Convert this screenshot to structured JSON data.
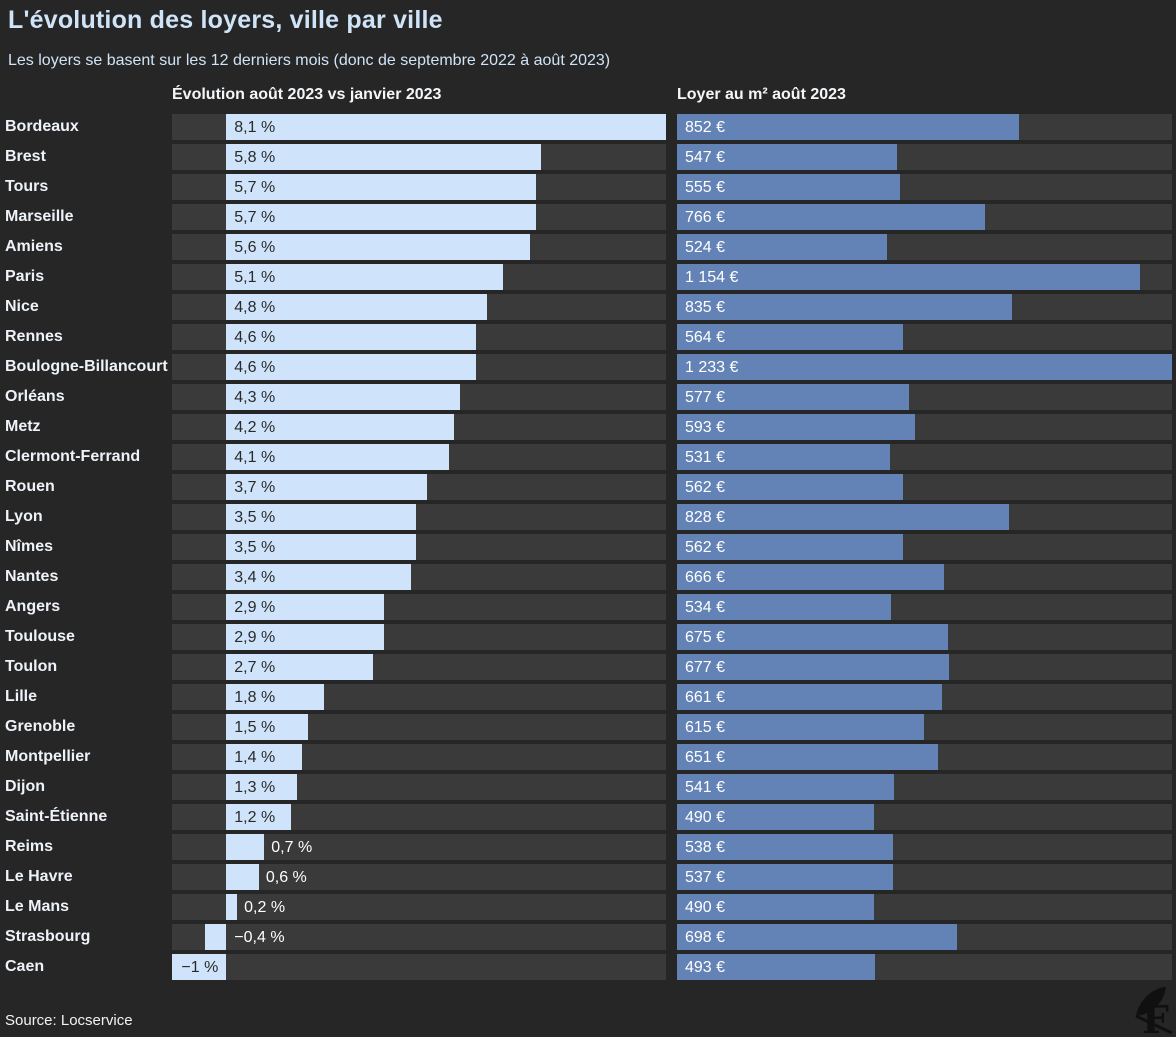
{
  "header": {
    "title": "L'évolution des loyers, ville par ville",
    "subtitle": "Les loyers se basent sur les 12 derniers mois (donc de septembre 2022 à août 2023)"
  },
  "columns": {
    "left_header": "Évolution août 2023 vs janvier 2023",
    "right_header": "Loyer au m² août 2023"
  },
  "footer": {
    "source": "Source: Locservice",
    "logo_icon": "quill-f-logo"
  },
  "colors": {
    "background": "#262626",
    "track": "#3a3a3a",
    "evolution_bar": "#cfe4fa",
    "rent_bar": "#6383b6",
    "heading_text": "#cfe4f8",
    "city_text": "#eef3f9",
    "value_dark_text": "#2a2a2a",
    "value_light_text": "#ffffff"
  },
  "chart_data": {
    "type": "bar",
    "orientation": "horizontal",
    "categories": [
      "Bordeaux",
      "Brest",
      "Tours",
      "Marseille",
      "Amiens",
      "Paris",
      "Nice",
      "Rennes",
      "Boulogne-Billancourt",
      "Orléans",
      "Metz",
      "Clermont-Ferrand",
      "Rouen",
      "Lyon",
      "Nîmes",
      "Nantes",
      "Angers",
      "Toulouse",
      "Toulon",
      "Lille",
      "Grenoble",
      "Montpellier",
      "Dijon",
      "Saint-Étienne",
      "Reims",
      "Le Havre",
      "Le Mans",
      "Strasbourg",
      "Caen"
    ],
    "series": [
      {
        "name": "Évolution août 2023 vs janvier 2023",
        "unit": "%",
        "axis_range": [
          -1,
          8.1
        ],
        "values": [
          8.1,
          5.8,
          5.7,
          5.7,
          5.6,
          5.1,
          4.8,
          4.6,
          4.6,
          4.3,
          4.2,
          4.1,
          3.7,
          3.5,
          3.5,
          3.4,
          2.9,
          2.9,
          2.7,
          1.8,
          1.5,
          1.4,
          1.3,
          1.2,
          0.7,
          0.6,
          0.2,
          -0.4,
          -1
        ],
        "labels": [
          "8,1 %",
          "5,8 %",
          "5,7 %",
          "5,7 %",
          "5,6 %",
          "5,1 %",
          "4,8 %",
          "4,6 %",
          "4,6 %",
          "4,3 %",
          "4,2 %",
          "4,1 %",
          "3,7 %",
          "3,5 %",
          "3,5 %",
          "3,4 %",
          "2,9 %",
          "2,9 %",
          "2,7 %",
          "1,8 %",
          "1,5 %",
          "1,4 %",
          "1,3 %",
          "1,2 %",
          "0,7 %",
          "0,6 %",
          "0,2 %",
          "−0,4 %",
          "−1 %"
        ]
      },
      {
        "name": "Loyer au m² août 2023",
        "unit": "€",
        "axis_range": [
          0,
          1233
        ],
        "values": [
          852,
          547,
          555,
          766,
          524,
          1154,
          835,
          564,
          1233,
          577,
          593,
          531,
          562,
          828,
          562,
          666,
          534,
          675,
          677,
          661,
          615,
          651,
          541,
          490,
          538,
          537,
          490,
          698,
          493
        ],
        "labels": [
          "852 €",
          "547 €",
          "555 €",
          "766 €",
          "524 €",
          "1 154 €",
          "835 €",
          "564 €",
          "1 233 €",
          "577 €",
          "593 €",
          "531 €",
          "562 €",
          "828 €",
          "562 €",
          "666 €",
          "534 €",
          "675 €",
          "677 €",
          "661 €",
          "615 €",
          "651 €",
          "541 €",
          "490 €",
          "538 €",
          "537 €",
          "490 €",
          "698 €",
          "493 €"
        ]
      }
    ],
    "grid": false,
    "legend_position": "none",
    "value_labels": "on-bar"
  }
}
